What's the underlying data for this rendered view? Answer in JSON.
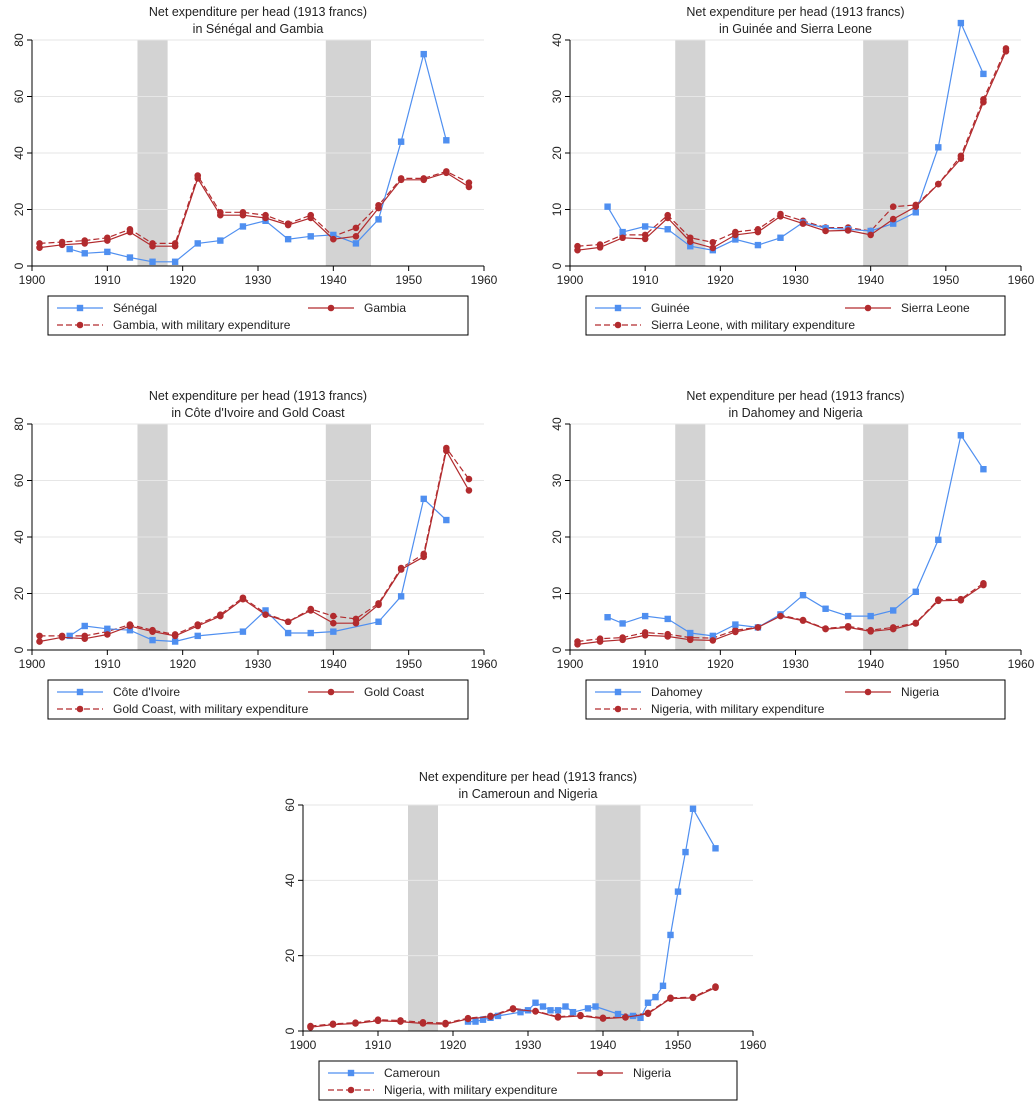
{
  "chart_data": [
    {
      "type": "line",
      "title": "Net expenditure per head (1913 francs)",
      "subtitle": "in Sénégal and Gambia",
      "xlabel": "",
      "ylabel": "",
      "xlim": [
        1900,
        1960
      ],
      "ylim": [
        0,
        80
      ],
      "xticks": [
        1900,
        1910,
        1920,
        1930,
        1940,
        1950,
        1960
      ],
      "yticks": [
        0,
        20,
        40,
        60,
        80
      ],
      "shaded_periods": [
        [
          1914,
          1918
        ],
        [
          1939,
          1945
        ]
      ],
      "grid": true,
      "legend_position": "bottom",
      "series": [
        {
          "name": "Sénégal",
          "color": "#4f8ff0",
          "marker": "square",
          "dash": false,
          "x": [
            1905,
            1907,
            1910,
            1913,
            1916,
            1919,
            1922,
            1925,
            1928,
            1931,
            1934,
            1937,
            1940,
            1943,
            1946,
            1949,
            1952,
            1955
          ],
          "y": [
            6,
            4.5,
            5,
            3,
            1.5,
            1.5,
            8,
            9,
            14,
            16,
            9.5,
            10.5,
            11,
            8,
            16.5,
            44,
            75,
            44.5
          ]
        },
        {
          "name": "Gambia",
          "color": "#b22b2e",
          "marker": "circle",
          "dash": false,
          "x": [
            1901,
            1904,
            1907,
            1910,
            1913,
            1916,
            1919,
            1922,
            1925,
            1928,
            1931,
            1934,
            1937,
            1940,
            1943,
            1946,
            1949,
            1952,
            1955,
            1958
          ],
          "y": [
            6.5,
            7.5,
            8,
            9,
            12,
            7,
            7,
            31,
            18,
            18,
            17,
            14.5,
            17,
            9.5,
            10.5,
            20.5,
            30.5,
            30.5,
            33,
            28
          ]
        },
        {
          "name": "Gambia, with military expenditure",
          "color": "#b22b2e",
          "marker": "circle",
          "dash": true,
          "x": [
            1901,
            1904,
            1907,
            1910,
            1913,
            1916,
            1919,
            1922,
            1925,
            1928,
            1931,
            1934,
            1937,
            1940,
            1943,
            1946,
            1949,
            1952,
            1955,
            1958
          ],
          "y": [
            8,
            8.5,
            9,
            10,
            13,
            8,
            8,
            32,
            19,
            19,
            18,
            15,
            18,
            10.5,
            13.5,
            21.5,
            31,
            31,
            33.5,
            29.5
          ]
        }
      ]
    },
    {
      "type": "line",
      "title": "Net expenditure per head (1913 francs)",
      "subtitle": "in Guinée and Sierra Leone",
      "xlabel": "",
      "ylabel": "",
      "xlim": [
        1900,
        1960
      ],
      "ylim": [
        0,
        40
      ],
      "xticks": [
        1900,
        1910,
        1920,
        1930,
        1940,
        1950,
        1960
      ],
      "yticks": [
        0,
        10,
        20,
        30,
        40
      ],
      "shaded_periods": [
        [
          1914,
          1918
        ],
        [
          1939,
          1945
        ]
      ],
      "grid": true,
      "legend_position": "bottom",
      "series": [
        {
          "name": "Guinée",
          "color": "#4f8ff0",
          "marker": "square",
          "dash": false,
          "x": [
            1905,
            1907,
            1910,
            1913,
            1916,
            1919,
            1922,
            1925,
            1928,
            1931,
            1934,
            1937,
            1940,
            1943,
            1946,
            1949,
            1952,
            1955
          ],
          "y": [
            10.5,
            6,
            7,
            6.5,
            3.5,
            2.8,
            4.7,
            3.7,
            5,
            7.7,
            6.7,
            6.5,
            6.2,
            7.5,
            9.5,
            21,
            43,
            34
          ]
        },
        {
          "name": "Sierra Leone",
          "color": "#b22b2e",
          "marker": "circle",
          "dash": false,
          "x": [
            1901,
            1904,
            1907,
            1910,
            1913,
            1916,
            1919,
            1922,
            1925,
            1928,
            1931,
            1934,
            1937,
            1940,
            1943,
            1946,
            1949,
            1952,
            1955,
            1958
          ],
          "y": [
            2.8,
            3.3,
            5,
            4.8,
            8.5,
            4.3,
            3.2,
            5.5,
            6,
            8.8,
            7.5,
            6.2,
            6.3,
            5.5,
            8.3,
            10.5,
            14.5,
            19,
            29,
            38
          ]
        },
        {
          "name": "Sierra Leone, with military expenditure",
          "color": "#b22b2e",
          "marker": "circle",
          "dash": true,
          "x": [
            1901,
            1904,
            1907,
            1910,
            1913,
            1916,
            1919,
            1922,
            1925,
            1928,
            1931,
            1934,
            1937,
            1940,
            1943,
            1946,
            1949,
            1952,
            1955,
            1958
          ],
          "y": [
            3.5,
            3.8,
            5.5,
            5.5,
            9,
            5,
            4.2,
            6,
            6.5,
            9.2,
            8,
            6.8,
            6.8,
            6.2,
            10.5,
            10.8,
            14.5,
            19.5,
            29.5,
            38.5
          ]
        }
      ]
    },
    {
      "type": "line",
      "title": "Net expenditure per head (1913 francs)",
      "subtitle": "in Côte d'Ivoire and Gold Coast",
      "xlabel": "",
      "ylabel": "",
      "xlim": [
        1900,
        1960
      ],
      "ylim": [
        0,
        80
      ],
      "xticks": [
        1900,
        1910,
        1920,
        1930,
        1940,
        1950,
        1960
      ],
      "yticks": [
        0,
        20,
        40,
        60,
        80
      ],
      "shaded_periods": [
        [
          1914,
          1918
        ],
        [
          1939,
          1945
        ]
      ],
      "grid": true,
      "legend_position": "bottom",
      "series": [
        {
          "name": "Côte d'Ivoire",
          "color": "#4f8ff0",
          "marker": "square",
          "dash": false,
          "x": [
            1905,
            1907,
            1910,
            1913,
            1916,
            1919,
            1922,
            1928,
            1931,
            1934,
            1937,
            1940,
            1946,
            1949,
            1952,
            1955
          ],
          "y": [
            5,
            8.5,
            7.5,
            7,
            3.5,
            3,
            5,
            6.5,
            14,
            6,
            6,
            6.5,
            10,
            19,
            53.5,
            46
          ]
        },
        {
          "name": "Gold Coast",
          "color": "#b22b2e",
          "marker": "circle",
          "dash": false,
          "x": [
            1901,
            1904,
            1907,
            1910,
            1913,
            1916,
            1919,
            1922,
            1925,
            1928,
            1931,
            1934,
            1937,
            1940,
            1943,
            1946,
            1949,
            1952,
            1955,
            1958
          ],
          "y": [
            3,
            4.5,
            4,
            5.5,
            8.5,
            6.5,
            5,
            8.5,
            12,
            18,
            12.5,
            10,
            14,
            9.5,
            9.5,
            16,
            28.5,
            33,
            70.5,
            56.5
          ]
        },
        {
          "name": "Gold Coast, with military expenditure",
          "color": "#b22b2e",
          "marker": "circle",
          "dash": true,
          "x": [
            1901,
            1904,
            1907,
            1910,
            1913,
            1916,
            1919,
            1922,
            1925,
            1928,
            1931,
            1934,
            1937,
            1940,
            1943,
            1946,
            1949,
            1952,
            1955,
            1958
          ],
          "y": [
            5,
            5,
            5,
            6.5,
            9,
            7,
            5.5,
            9,
            12.5,
            18.5,
            13,
            10,
            14.5,
            12,
            11,
            16.5,
            29,
            34,
            71.5,
            60.5
          ]
        }
      ]
    },
    {
      "type": "line",
      "title": "Net expenditure per head (1913 francs)",
      "subtitle": "in Dahomey and Nigeria",
      "xlabel": "",
      "ylabel": "",
      "xlim": [
        1900,
        1960
      ],
      "ylim": [
        0,
        40
      ],
      "xticks": [
        1900,
        1910,
        1920,
        1930,
        1940,
        1950,
        1960
      ],
      "yticks": [
        0,
        10,
        20,
        30,
        40
      ],
      "shaded_periods": [
        [
          1914,
          1918
        ],
        [
          1939,
          1945
        ]
      ],
      "grid": true,
      "legend_position": "bottom",
      "series": [
        {
          "name": "Dahomey",
          "color": "#4f8ff0",
          "marker": "square",
          "dash": false,
          "x": [
            1905,
            1907,
            1910,
            1913,
            1916,
            1919,
            1922,
            1925,
            1928,
            1931,
            1934,
            1937,
            1940,
            1943,
            1946,
            1949,
            1952,
            1955
          ],
          "y": [
            5.8,
            4.7,
            6,
            5.5,
            3,
            2.5,
            4.5,
            4,
            6.3,
            9.7,
            7.3,
            6,
            6,
            7,
            10.3,
            19.5,
            38,
            32
          ]
        },
        {
          "name": "Nigeria",
          "color": "#b22b2e",
          "marker": "circle",
          "dash": false,
          "x": [
            1901,
            1904,
            1907,
            1910,
            1913,
            1916,
            1919,
            1922,
            1925,
            1928,
            1931,
            1934,
            1937,
            1940,
            1943,
            1946,
            1949,
            1952,
            1955
          ],
          "y": [
            1,
            1.5,
            1.8,
            2.6,
            2.4,
            1.8,
            1.7,
            3.2,
            4,
            6,
            5.2,
            3.7,
            4,
            3.3,
            3.7,
            4.7,
            8.7,
            8.8,
            11.5
          ]
        },
        {
          "name": "Nigeria, with military expenditure",
          "color": "#b22b2e",
          "marker": "circle",
          "dash": true,
          "x": [
            1901,
            1904,
            1907,
            1910,
            1913,
            1916,
            1919,
            1922,
            1925,
            1928,
            1931,
            1934,
            1937,
            1940,
            1943,
            1946,
            1949,
            1952,
            1955
          ],
          "y": [
            1.5,
            2,
            2.2,
            3.1,
            2.8,
            2.2,
            2.1,
            3.5,
            4,
            6.2,
            5.3,
            3.8,
            4.2,
            3.5,
            4,
            4.8,
            8.9,
            9,
            11.8
          ]
        }
      ]
    },
    {
      "type": "line",
      "title": "Net expenditure per head (1913 francs)",
      "subtitle": "in Cameroun and Nigeria",
      "xlabel": "",
      "ylabel": "",
      "xlim": [
        1900,
        1960
      ],
      "ylim": [
        0,
        60
      ],
      "xticks": [
        1900,
        1910,
        1920,
        1930,
        1940,
        1950,
        1960
      ],
      "yticks": [
        0,
        20,
        40,
        60
      ],
      "shaded_periods": [
        [
          1914,
          1918
        ],
        [
          1939,
          1945
        ]
      ],
      "grid": true,
      "legend_position": "bottom",
      "series": [
        {
          "name": "Cameroun",
          "color": "#4f8ff0",
          "marker": "square",
          "dash": false,
          "x": [
            1922,
            1923,
            1924,
            1925,
            1926,
            1929,
            1930,
            1931,
            1932,
            1933,
            1934,
            1935,
            1936,
            1938,
            1939,
            1942,
            1944,
            1945,
            1946,
            1947,
            1948,
            1949,
            1950,
            1951,
            1952,
            1955
          ],
          "y": [
            2.5,
            2.5,
            3,
            3.5,
            4,
            5,
            5.5,
            7.5,
            6.5,
            5.5,
            5.5,
            6.5,
            5,
            6,
            6.5,
            4.5,
            4,
            3.5,
            7.5,
            9,
            12,
            25.5,
            37,
            47.5,
            59,
            48.5
          ]
        },
        {
          "name": "Nigeria",
          "color": "#b22b2e",
          "marker": "circle",
          "dash": false,
          "x": [
            1901,
            1904,
            1907,
            1910,
            1913,
            1916,
            1919,
            1922,
            1925,
            1928,
            1931,
            1934,
            1937,
            1940,
            1943,
            1946,
            1949,
            1952,
            1955
          ],
          "y": [
            1,
            1.7,
            2,
            2.7,
            2.5,
            2,
            1.8,
            3.2,
            3.8,
            5.8,
            5.2,
            3.6,
            4,
            3.3,
            3.6,
            4.6,
            8.6,
            8.8,
            11.5
          ]
        },
        {
          "name": "Nigeria, with military expenditure",
          "color": "#b22b2e",
          "marker": "circle",
          "dash": true,
          "x": [
            1901,
            1904,
            1907,
            1910,
            1913,
            1916,
            1919,
            1922,
            1925,
            1928,
            1931,
            1934,
            1937,
            1940,
            1943,
            1946,
            1949,
            1952,
            1955
          ],
          "y": [
            1.3,
            1.9,
            2.2,
            3,
            2.8,
            2.3,
            2.1,
            3.4,
            4,
            6,
            5.3,
            3.8,
            4.2,
            3.5,
            3.8,
            4.8,
            8.8,
            9,
            11.8
          ]
        }
      ]
    }
  ]
}
